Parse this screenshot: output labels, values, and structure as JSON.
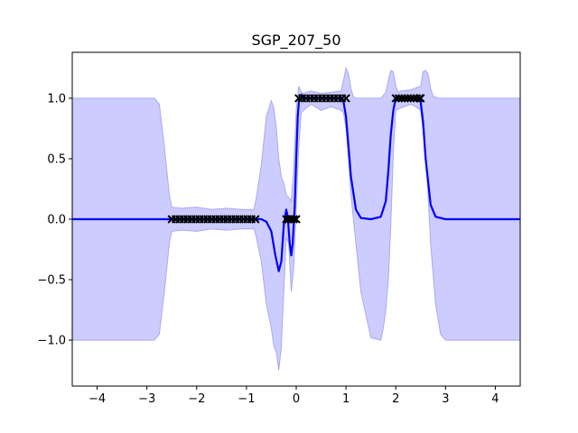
{
  "chart_data": {
    "type": "line",
    "title": "SGP_207_50",
    "xlabel": "",
    "ylabel": "",
    "xlim": [
      -4.5,
      4.5
    ],
    "ylim": [
      -1.38,
      1.38
    ],
    "xticks": [
      -4,
      -3,
      -2,
      -1,
      0,
      1,
      2,
      3,
      4
    ],
    "xtick_labels": [
      "−4",
      "−3",
      "−2",
      "−1",
      "0",
      "1",
      "2",
      "3",
      "4"
    ],
    "yticks": [
      -1.0,
      -0.5,
      0.0,
      0.5,
      1.0
    ],
    "ytick_labels": [
      "−1.0",
      "−0.5",
      "0.0",
      "0.5",
      "1.0"
    ],
    "grid": false,
    "colors": {
      "mean": "#0000ff",
      "band": "#ccccff",
      "band_edge": "#aaaaee",
      "points": "#000000"
    },
    "series": [
      {
        "kind": "mean",
        "x": [
          -4.5,
          -2.5,
          -1.0,
          -0.85,
          -0.7,
          -0.6,
          -0.5,
          -0.42,
          -0.35,
          -0.3,
          -0.25,
          -0.2,
          -0.17,
          -0.13,
          -0.1,
          -0.07,
          -0.03,
          0.0,
          0.03,
          0.06,
          0.1,
          0.14,
          0.2,
          0.3,
          0.5,
          0.7,
          0.9,
          0.95,
          1.0,
          1.05,
          1.1,
          1.2,
          1.3,
          1.5,
          1.7,
          1.8,
          1.85,
          1.9,
          1.95,
          2.0,
          2.05,
          2.1,
          2.3,
          2.45,
          2.5,
          2.55,
          2.6,
          2.7,
          2.8,
          3.0,
          4.5
        ],
        "y": [
          0.0,
          0.0,
          0.0,
          0.0,
          0.0,
          -0.02,
          -0.1,
          -0.3,
          -0.43,
          -0.35,
          -0.05,
          0.08,
          0.02,
          -0.2,
          -0.3,
          -0.2,
          0.1,
          0.5,
          0.85,
          1.0,
          1.03,
          1.0,
          1.0,
          1.0,
          1.0,
          1.0,
          1.0,
          0.97,
          0.85,
          0.6,
          0.35,
          0.08,
          0.01,
          0.0,
          0.02,
          0.15,
          0.4,
          0.7,
          0.9,
          1.0,
          1.0,
          1.0,
          1.0,
          1.0,
          0.97,
          0.8,
          0.5,
          0.12,
          0.02,
          0.0,
          0.0
        ]
      },
      {
        "kind": "band_upper",
        "x": [
          -4.5,
          -2.85,
          -2.75,
          -2.65,
          -2.55,
          -2.5,
          -2.3,
          -2.0,
          -1.7,
          -1.4,
          -1.1,
          -0.85,
          -0.8,
          -0.7,
          -0.6,
          -0.5,
          -0.45,
          -0.4,
          -0.35,
          -0.3,
          -0.25,
          -0.2,
          -0.15,
          -0.1,
          -0.05,
          0.0,
          0.05,
          0.1,
          0.15,
          0.2,
          0.3,
          0.5,
          0.7,
          0.9,
          0.95,
          1.0,
          1.05,
          1.1,
          1.15,
          1.2,
          1.3,
          1.5,
          1.7,
          1.8,
          1.85,
          1.9,
          1.95,
          2.0,
          2.05,
          2.1,
          2.3,
          2.5,
          2.55,
          2.6,
          2.65,
          2.7,
          2.75,
          2.85,
          3.0,
          4.5
        ],
        "y": [
          1.0,
          1.0,
          0.95,
          0.6,
          0.2,
          0.1,
          0.09,
          0.1,
          0.08,
          0.09,
          0.08,
          0.08,
          0.18,
          0.45,
          0.85,
          0.98,
          0.92,
          0.75,
          0.5,
          0.35,
          0.3,
          0.2,
          0.18,
          0.15,
          0.4,
          0.9,
          1.1,
          1.05,
          1.04,
          1.05,
          1.06,
          1.04,
          1.05,
          1.06,
          1.15,
          1.25,
          1.2,
          1.08,
          1.01,
          1.0,
          1.0,
          1.0,
          1.0,
          1.05,
          1.15,
          1.23,
          1.22,
          1.1,
          1.05,
          1.06,
          1.07,
          1.1,
          1.22,
          1.23,
          1.2,
          1.08,
          1.02,
          1.0,
          1.0,
          1.0
        ]
      },
      {
        "kind": "band_lower",
        "x": [
          -4.5,
          -2.85,
          -2.75,
          -2.65,
          -2.55,
          -2.5,
          -2.3,
          -2.0,
          -1.7,
          -1.4,
          -1.1,
          -0.85,
          -0.8,
          -0.7,
          -0.6,
          -0.5,
          -0.45,
          -0.4,
          -0.35,
          -0.3,
          -0.25,
          -0.2,
          -0.15,
          -0.1,
          -0.05,
          0.0,
          0.05,
          0.1,
          0.15,
          0.2,
          0.3,
          0.5,
          0.7,
          0.9,
          0.95,
          1.0,
          1.05,
          1.1,
          1.2,
          1.3,
          1.5,
          1.7,
          1.75,
          1.8,
          1.85,
          1.9,
          1.95,
          2.0,
          2.1,
          2.3,
          2.4,
          2.5,
          2.6,
          2.65,
          2.7,
          2.8,
          2.9,
          3.0,
          4.5
        ],
        "y": [
          -1.0,
          -1.0,
          -0.95,
          -0.6,
          -0.2,
          -0.1,
          -0.09,
          -0.1,
          -0.08,
          -0.09,
          -0.08,
          -0.08,
          -0.15,
          -0.35,
          -0.7,
          -0.9,
          -1.05,
          -1.1,
          -1.25,
          -1.05,
          -0.6,
          -0.15,
          -0.2,
          -0.6,
          -0.4,
          0.1,
          0.6,
          0.88,
          0.9,
          0.92,
          0.95,
          0.9,
          0.93,
          0.9,
          0.88,
          0.75,
          0.5,
          0.2,
          -0.2,
          -0.6,
          -0.98,
          -1.0,
          -0.9,
          -0.75,
          -0.5,
          -0.05,
          0.55,
          0.9,
          0.92,
          0.95,
          0.93,
          0.9,
          0.55,
          0.2,
          -0.2,
          -0.7,
          -0.95,
          -1.0,
          -1.0
        ]
      },
      {
        "kind": "inducing_points",
        "x": [
          -2.5,
          -2.42,
          -2.34,
          -2.26,
          -2.18,
          -2.1,
          -2.02,
          -1.94,
          -1.86,
          -1.78,
          -1.7,
          -1.62,
          -1.54,
          -1.46,
          -1.38,
          -1.3,
          -1.22,
          -1.14,
          -1.06,
          -0.98,
          -0.9,
          -0.82,
          -0.2,
          -0.15,
          -0.1,
          -0.05,
          0.0,
          0.05,
          0.12,
          0.2,
          0.28,
          0.36,
          0.44,
          0.52,
          0.6,
          0.68,
          0.76,
          0.84,
          0.92,
          1.0,
          2.0,
          2.06,
          2.12,
          2.18,
          2.24,
          2.3,
          2.36,
          2.42,
          2.48,
          2.5
        ],
        "y": [
          0,
          0,
          0,
          0,
          0,
          0,
          0,
          0,
          0,
          0,
          0,
          0,
          0,
          0,
          0,
          0,
          0,
          0,
          0,
          0,
          0,
          0,
          0,
          0,
          0,
          0,
          0,
          1,
          1,
          1,
          1,
          1,
          1,
          1,
          1,
          1,
          1,
          1,
          1,
          1,
          1,
          1,
          1,
          1,
          1,
          1,
          1,
          1,
          1,
          1
        ]
      }
    ]
  }
}
